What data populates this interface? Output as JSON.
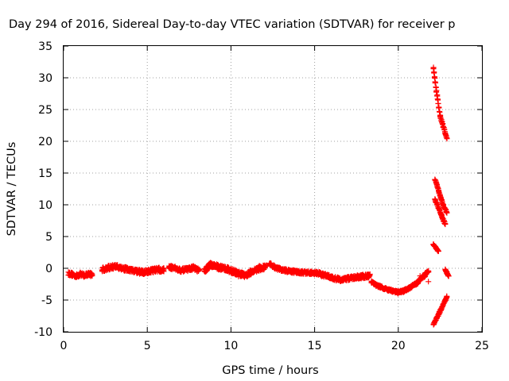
{
  "chart_data": {
    "type": "scatter",
    "title": "Day 294 of 2016, Sidereal Day-to-day VTEC variation (SDTVAR) for receiver p",
    "xlabel": "GPS time / hours",
    "ylabel": "SDTVAR / TECUs",
    "xlim": [
      0,
      25
    ],
    "ylim": [
      -10,
      35
    ],
    "xticks": [
      0,
      5,
      10,
      15,
      20,
      25
    ],
    "yticks": [
      -10,
      -5,
      0,
      5,
      10,
      15,
      20,
      25,
      30,
      35
    ],
    "grid": true,
    "marker": "plus",
    "color": "#ff0000",
    "series": [
      {
        "name": "SDTVAR",
        "segments": [
          {
            "x0": 0.3,
            "x1": 1.7,
            "y": [
              -0.8,
              -1.0,
              -1.2,
              -0.9,
              -1.1,
              -0.9,
              -1.0
            ],
            "spread": 0.6
          },
          {
            "x0": 2.3,
            "x1": 6.0,
            "y": [
              -0.2,
              0.1,
              0.3,
              0.0,
              -0.3,
              -0.5,
              -0.6,
              -0.4,
              -0.2,
              -0.3
            ],
            "spread": 0.7
          },
          {
            "x0": 6.3,
            "x1": 8.1,
            "y": [
              0.2,
              0.0,
              -0.3,
              -0.2,
              0.1,
              -0.4
            ],
            "spread": 0.6
          },
          {
            "x0": 8.4,
            "x1": 12.1,
            "y": [
              -0.4,
              0.6,
              0.2,
              0.0,
              -0.4,
              -0.9,
              -1.1,
              -0.5,
              0.0,
              0.1
            ],
            "spread": 0.8
          },
          {
            "x0": 12.3,
            "x1": 15.3,
            "y": [
              0.7,
              0.0,
              -0.3,
              -0.5,
              -0.6,
              -0.7,
              -0.7,
              -0.8
            ],
            "spread": 0.5
          },
          {
            "x0": 15.3,
            "x1": 18.3,
            "y": [
              -0.9,
              -1.2,
              -1.6,
              -1.8,
              -1.6,
              -1.4,
              -1.3,
              -1.2
            ],
            "spread": 0.6
          },
          {
            "x0": 18.4,
            "x1": 20.0,
            "y": [
              -2.2,
              -2.7,
              -3.0,
              -3.4,
              -3.6,
              -3.8
            ],
            "spread": 0.4
          },
          {
            "x0": 20.0,
            "x1": 21.2,
            "y": [
              -3.8,
              -3.6,
              -3.2,
              -2.7,
              -2.2
            ],
            "spread": 0.4
          },
          {
            "x0": 21.2,
            "x1": 21.6,
            "y": [
              -2.0,
              -1.5,
              -1.2
            ],
            "spread": 0.3
          },
          {
            "x0": 21.6,
            "x1": 21.8,
            "y": [
              -0.8,
              -0.5
            ],
            "spread": 0.2
          },
          {
            "x0": 22.1,
            "x1": 22.5,
            "y": [
              31.5,
              27.5,
              24.0
            ],
            "spread": 0.3
          },
          {
            "x0": 22.5,
            "x1": 22.9,
            "y": [
              24.0,
              22.2,
              20.5
            ],
            "spread": 0.3
          },
          {
            "x0": 22.2,
            "x1": 22.9,
            "y": [
              14.0,
              12.0,
              10.0,
              8.8
            ],
            "spread": 0.3
          },
          {
            "x0": 22.2,
            "x1": 22.8,
            "y": [
              10.8,
              9.5,
              8.2,
              7.0
            ],
            "spread": 0.3
          },
          {
            "x0": 22.1,
            "x1": 22.4,
            "y": [
              3.8,
              3.2,
              2.7
            ],
            "spread": 0.2
          },
          {
            "x0": 22.1,
            "x1": 22.9,
            "y": [
              -8.8,
              -7.5,
              -6.0,
              -4.5
            ],
            "spread": 0.3
          },
          {
            "x0": 22.8,
            "x1": 23.0,
            "y": [
              -0.2,
              -0.7,
              -1.2
            ],
            "spread": 0.2
          }
        ],
        "points": [
          {
            "x": 21.8,
            "y": -2.1
          },
          {
            "x": 21.3,
            "y": -1.2
          }
        ]
      }
    ]
  }
}
